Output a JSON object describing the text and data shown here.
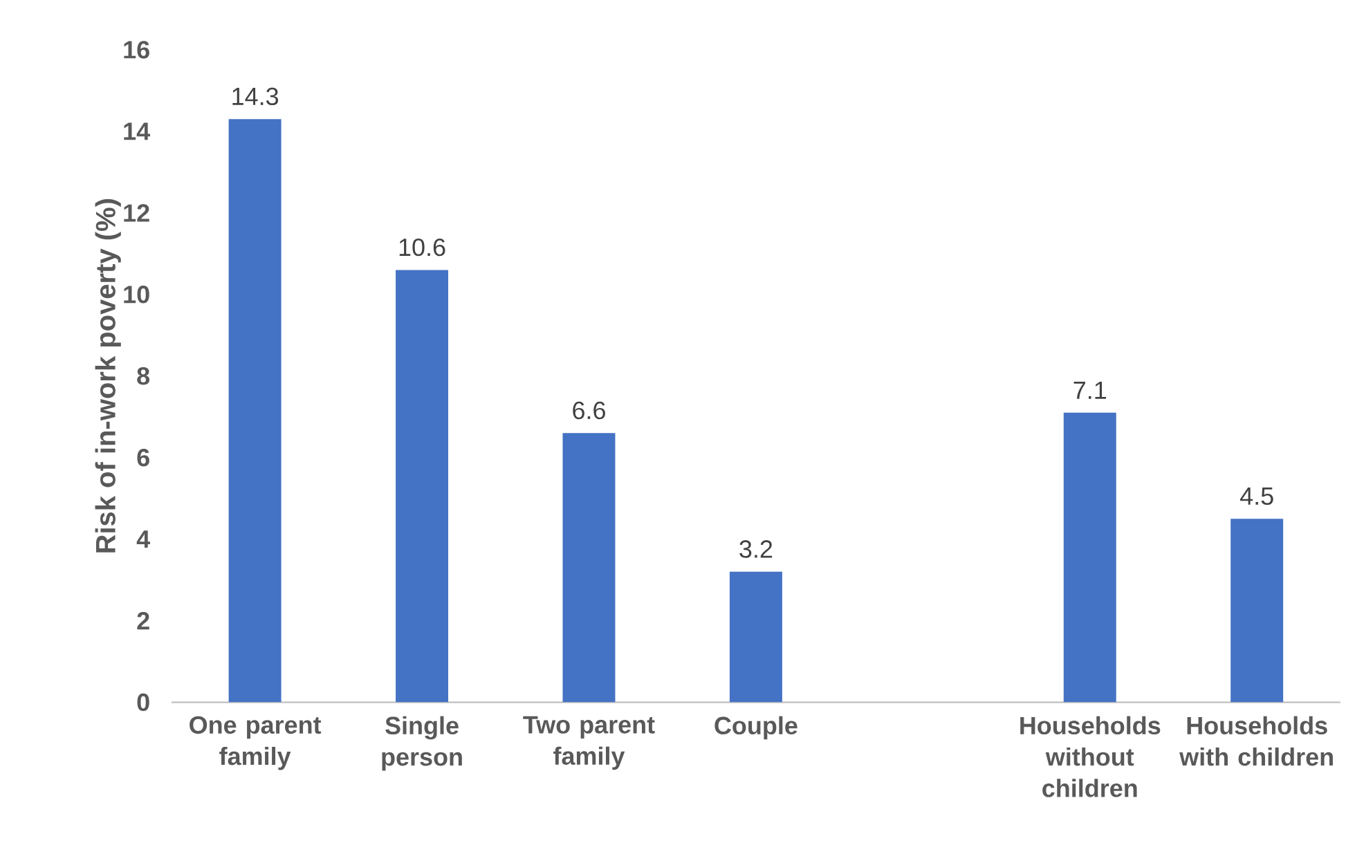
{
  "chart_data": {
    "type": "bar",
    "ylabel": "Risk of in-work poverty (%)",
    "categories": [
      "One parent family",
      "Single person",
      "Two parent family",
      "Couple",
      null,
      "Households without children",
      "Households with children"
    ],
    "values": [
      14.3,
      10.6,
      6.6,
      3.2,
      null,
      7.1,
      4.5
    ],
    "color": "#4472c4",
    "ylim": [
      0,
      16
    ],
    "yticks": [
      0,
      2,
      4,
      6,
      8,
      10,
      12,
      14,
      16
    ],
    "data_labels": true,
    "grid": false
  }
}
